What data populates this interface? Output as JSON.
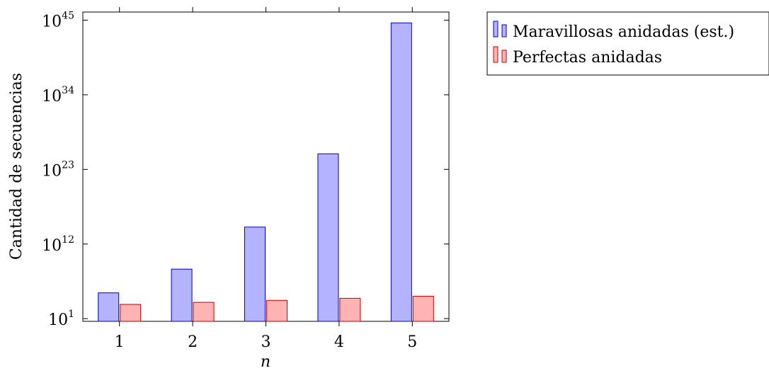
{
  "chart_data": {
    "type": "bar",
    "scale": "log10",
    "categories": [
      "1",
      "2",
      "3",
      "4",
      "5"
    ],
    "series": [
      {
        "name": "Maravillosas anidadas (est.)",
        "log10_values": [
          4.8,
          8.3,
          14.5,
          25.3,
          44.6
        ],
        "fill": "#b3b3ff",
        "stroke": "#0000cc"
      },
      {
        "name": "Perfectas anidadas",
        "log10_values": [
          3.1,
          3.4,
          3.7,
          4.0,
          4.3
        ],
        "fill": "#ffb3b3",
        "stroke": "#cc0000"
      }
    ],
    "ylim_log10": [
      0.6,
      46.2
    ],
    "yticks": [
      {
        "base": "10",
        "exp": "1",
        "log10": 1
      },
      {
        "base": "10",
        "exp": "12",
        "log10": 12
      },
      {
        "base": "10",
        "exp": "23",
        "log10": 23
      },
      {
        "base": "10",
        "exp": "34",
        "log10": 34
      },
      {
        "base": "10",
        "exp": "45",
        "log10": 45
      }
    ],
    "xlabel": "n",
    "ylabel": "Cantidad de secuencias",
    "legend_position": "outside-right-top",
    "grid": false
  }
}
